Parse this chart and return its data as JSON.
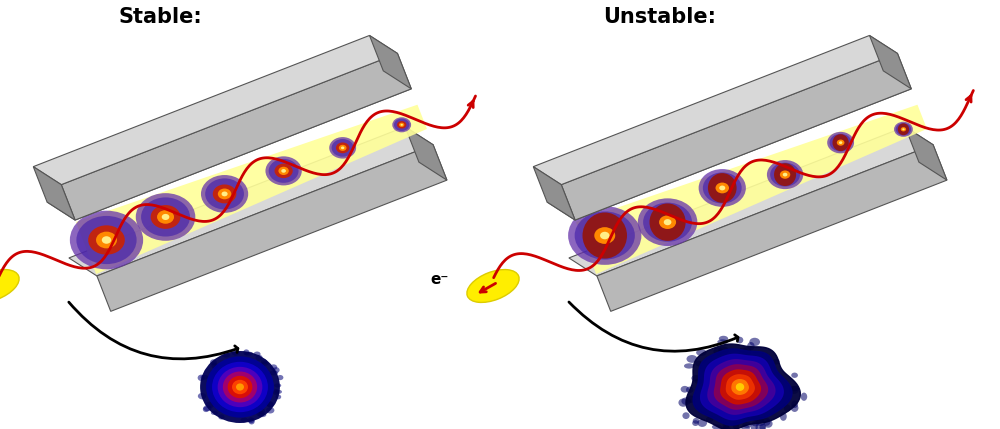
{
  "title_stable": "Stable:",
  "title_unstable": "Unstable:",
  "title_fontsize": 15,
  "title_fontweight": "bold",
  "bg_color": "#ffffff",
  "label_electron": "e⁻",
  "gray_light": "#d8d8d8",
  "gray_mid": "#b8b8b8",
  "gray_dark": "#909090",
  "gray_edge": "#555555",
  "red_line": "#cc0000"
}
